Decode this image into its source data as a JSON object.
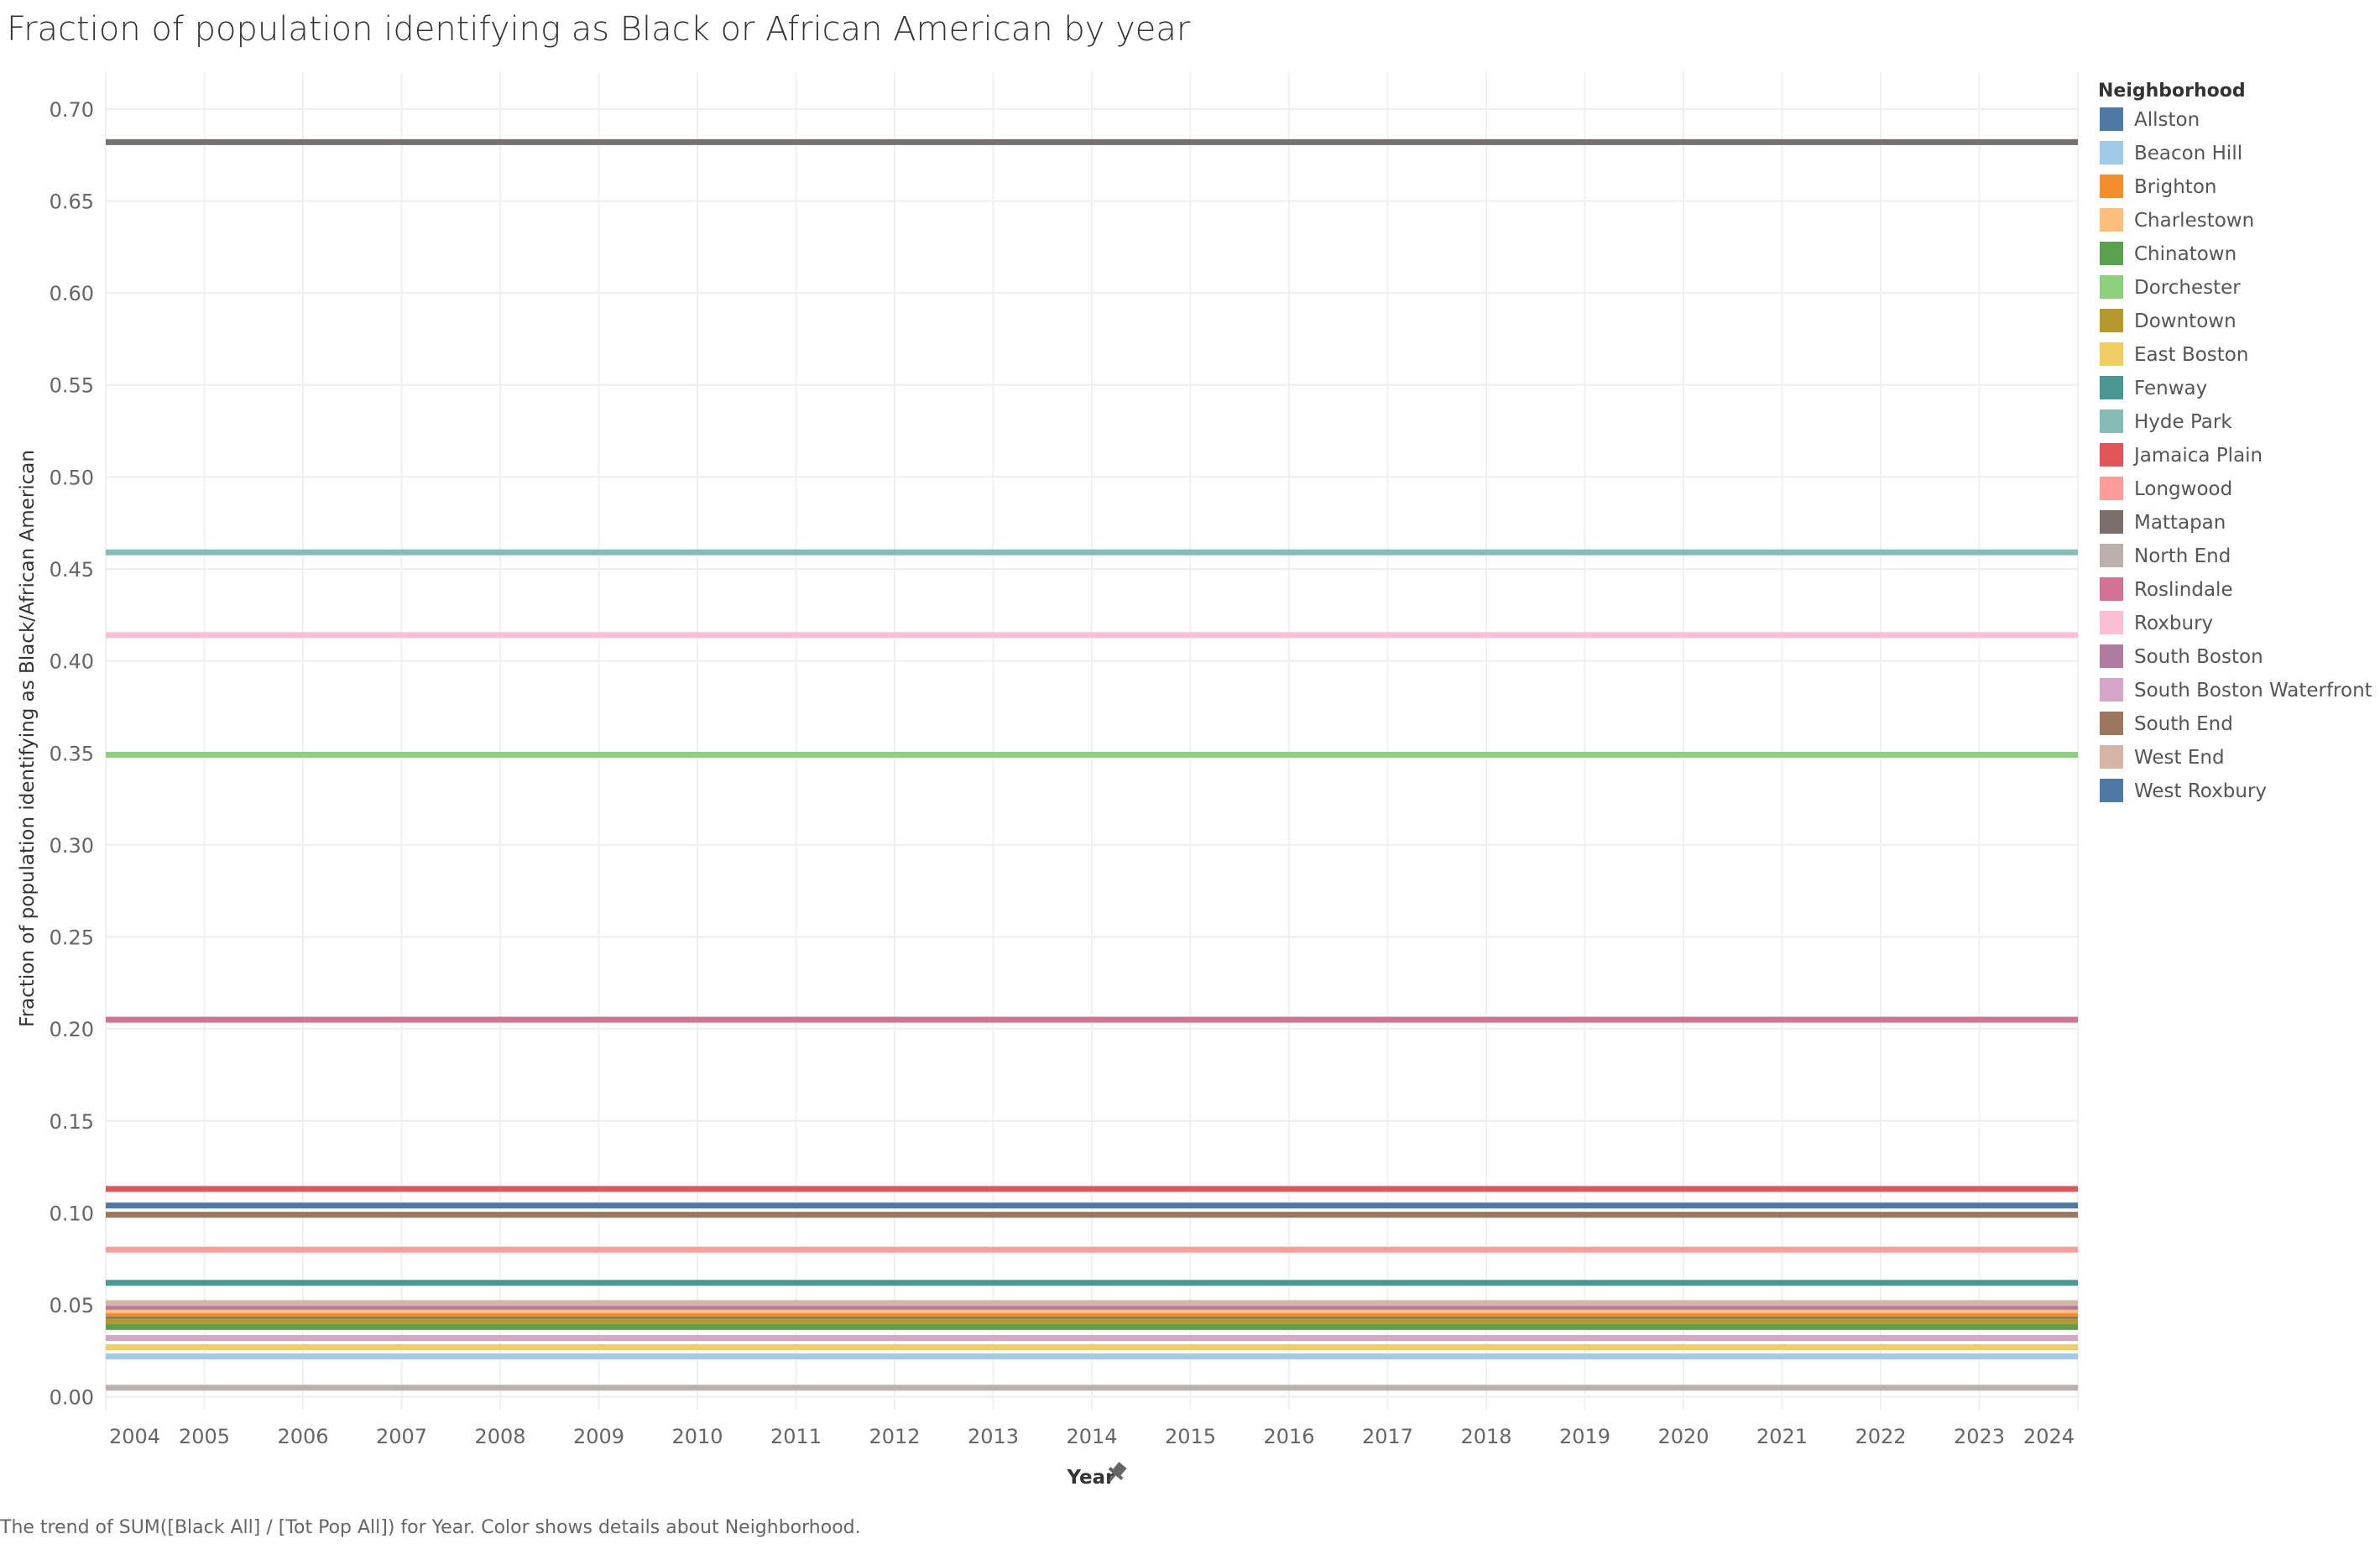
{
  "title": "Fraction of population identifying as Black or African American by year",
  "caption": "The trend of SUM([Black All] / [Tot Pop All]) for Year.  Color shows details about Neighborhood.",
  "chart_data": {
    "type": "line",
    "xlabel": "Year",
    "ylabel": "Fraction of population identifying as Black/African American",
    "x": [
      2004,
      2005,
      2006,
      2007,
      2008,
      2009,
      2010,
      2011,
      2012,
      2013,
      2014,
      2015,
      2016,
      2017,
      2018,
      2019,
      2020,
      2021,
      2022,
      2023,
      2024
    ],
    "xlim": [
      2004,
      2024
    ],
    "ylim": [
      -0.007,
      0.72
    ],
    "yticks": [
      0.0,
      0.05,
      0.1,
      0.15,
      0.2,
      0.25,
      0.3,
      0.35,
      0.4,
      0.45,
      0.5,
      0.55,
      0.6,
      0.65,
      0.7
    ],
    "grid": true,
    "legend_title": "Neighborhood",
    "legend_position": "right",
    "series": [
      {
        "name": "Allston",
        "color": "#4e79a7",
        "value": 0.043
      },
      {
        "name": "Beacon Hill",
        "color": "#a0cbe8",
        "value": 0.022
      },
      {
        "name": "Brighton",
        "color": "#f28e2b",
        "value": 0.045
      },
      {
        "name": "Charlestown",
        "color": "#ffbe7d",
        "value": 0.047
      },
      {
        "name": "Chinatown",
        "color": "#59a14f",
        "value": 0.038
      },
      {
        "name": "Dorchester",
        "color": "#8cd17d",
        "value": 0.349
      },
      {
        "name": "Downtown",
        "color": "#b6992d",
        "value": 0.041
      },
      {
        "name": "East Boston",
        "color": "#f1ce63",
        "value": 0.027
      },
      {
        "name": "Fenway",
        "color": "#499894",
        "value": 0.062
      },
      {
        "name": "Hyde Park",
        "color": "#86bcb6",
        "value": 0.459
      },
      {
        "name": "Jamaica Plain",
        "color": "#e15759",
        "value": 0.113
      },
      {
        "name": "Longwood",
        "color": "#ff9d9a",
        "value": 0.08
      },
      {
        "name": "Mattapan",
        "color": "#79706e",
        "value": 0.682
      },
      {
        "name": "North End",
        "color": "#bab0ac",
        "value": 0.005
      },
      {
        "name": "Roslindale",
        "color": "#d37295",
        "value": 0.205
      },
      {
        "name": "Roxbury",
        "color": "#fabfd2",
        "value": 0.414
      },
      {
        "name": "South Boston",
        "color": "#b07aa1",
        "value": 0.049
      },
      {
        "name": "South Boston Waterfront",
        "color": "#d4a6c8",
        "value": 0.032
      },
      {
        "name": "South End",
        "color": "#9d7660",
        "value": 0.099
      },
      {
        "name": "West End",
        "color": "#d7b5a6",
        "value": 0.051
      },
      {
        "name": "West Roxbury",
        "color": "#4e79a7",
        "value": 0.104
      }
    ]
  }
}
